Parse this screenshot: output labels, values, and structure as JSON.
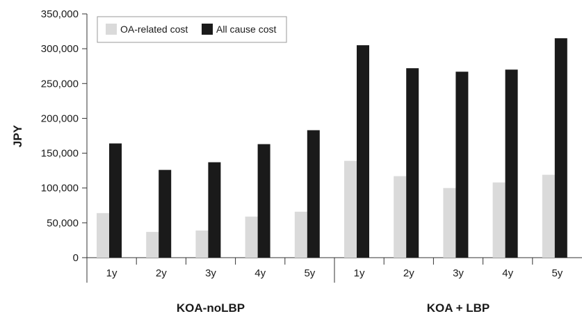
{
  "chart_data": {
    "type": "bar",
    "title": "",
    "xlabel": "",
    "ylabel": "JPY",
    "ylim": [
      0,
      350000
    ],
    "yticks": [
      0,
      50000,
      100000,
      150000,
      200000,
      250000,
      300000,
      350000
    ],
    "ytick_labels": [
      "0",
      "50,000",
      "100,000",
      "150,000",
      "200,000",
      "250,000",
      "300,000",
      "350,000"
    ],
    "grid": false,
    "legend_position": "top-left",
    "groups": [
      "KOA-noLBP",
      "KOA + LBP"
    ],
    "categories": [
      "1y",
      "2y",
      "3y",
      "4y",
      "5y",
      "1y",
      "2y",
      "3y",
      "4y",
      "5y"
    ],
    "category_groups": [
      0,
      0,
      0,
      0,
      0,
      1,
      1,
      1,
      1,
      1
    ],
    "series": [
      {
        "name": "OA-related cost",
        "color": "#dadada",
        "values": [
          64000,
          37000,
          39000,
          59000,
          66000,
          139000,
          117000,
          100000,
          108000,
          119000
        ]
      },
      {
        "name": "All cause cost",
        "color": "#1a1a1a",
        "values": [
          164000,
          126000,
          137000,
          163000,
          183000,
          305000,
          272000,
          267000,
          270000,
          315000
        ]
      }
    ]
  }
}
